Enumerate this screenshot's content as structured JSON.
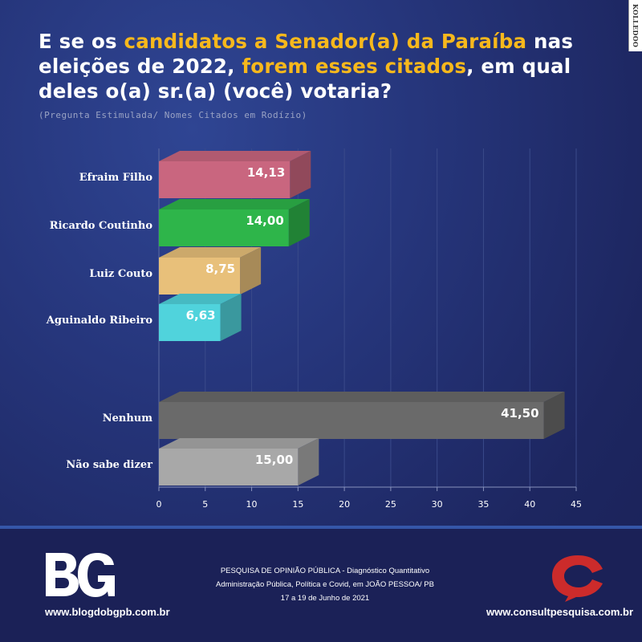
{
  "title": {
    "part1": "E se os ",
    "highlight1": "candidatos a Senador(a) da Paraíba",
    "part2": " nas eleições de 2022, ",
    "highlight2": "forem esses citados",
    "part3": ", em qual deles o(a) sr.(a) (você) votaria?"
  },
  "subtitle": "(Pregunta Estimulada/ Nomes Citados em Rodízio)",
  "side_logo": "KOLLEDOO",
  "chart_data": {
    "type": "bar",
    "orientation": "horizontal",
    "categories": [
      "Efraim Filho",
      "Ricardo Coutinho",
      "Luiz Couto",
      "Aguinaldo Ribeiro",
      "Nenhum",
      "Não sabe dizer"
    ],
    "values": [
      14.13,
      14.0,
      8.75,
      6.63,
      41.5,
      15.0
    ],
    "value_labels": [
      "14,13",
      "14,00",
      "8,75",
      "6,63",
      "41,50",
      "15,00"
    ],
    "colors": [
      "#c9667f",
      "#2eb54a",
      "#e8c07a",
      "#50d3dc",
      "#6a6a6a",
      "#a8a8a8"
    ],
    "xlim": [
      0,
      45
    ],
    "xticks": [
      "0",
      "5",
      "10",
      "15",
      "20",
      "25",
      "30",
      "35",
      "40",
      "45"
    ],
    "grid": true,
    "style": "3d"
  },
  "footer": {
    "left_logo": "BG",
    "left_url": "www.blogdobgpb.com.br",
    "center_lines": [
      "PESQUISA DE OPINIÃO PÚBLICA - Diagnóstico Quantitativo",
      "Administração Pública, Política e Covid, em JOÃO PESSOA/ PB",
      "17 a 19 de Junho de 2021"
    ],
    "right_url": "www.consultpesquisa.com.br"
  }
}
